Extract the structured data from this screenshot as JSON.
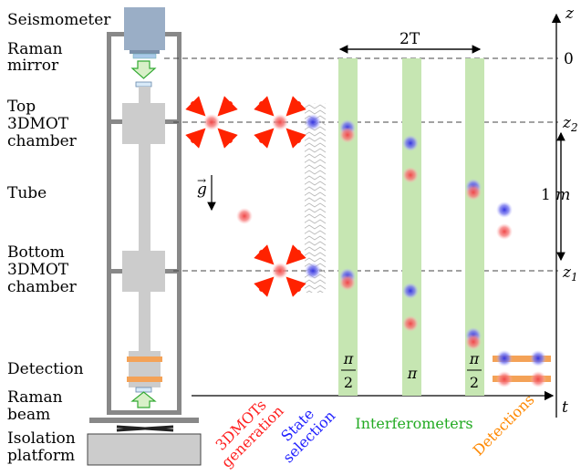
{
  "apparatus_labels": {
    "seismometer": "Seismometer",
    "raman_mirror_1": "Raman",
    "raman_mirror_2": "mirror",
    "top_1": "Top",
    "top_2": "3DMOT",
    "top_3": "chamber",
    "tube": "Tube",
    "bottom_1": "Bottom",
    "bottom_2": "3DMOT",
    "bottom_3": "chamber",
    "detection": "Detection",
    "raman_beam_1": "Raman",
    "raman_beam_2": "beam",
    "isolation_1": "Isolation",
    "isolation_2": "platform"
  },
  "axes": {
    "z_label": "z",
    "t_label": "t",
    "z_ticks": [
      "0",
      "z2",
      "z1"
    ],
    "span_label": "1 m",
    "time_span_label": "2T",
    "gravity_label": "g"
  },
  "pulses": [
    "π/2",
    "π",
    "π/2"
  ],
  "phases": {
    "mot": "3DMOTs generation",
    "state": "State selection",
    "interferometers": "Interferometers",
    "detections": "Detections"
  },
  "colors": {
    "atom_red": "#f06060",
    "atom_blue": "#4040e0",
    "laser_beam_green": "#c6e6b2",
    "mot_arrow_red": "#ff2200",
    "detection_beam_orange": "#f4a257",
    "frame_gray": "#888888",
    "chamber_gray": "#cccccc",
    "seismometer_blue": "#9aaec6",
    "phase_mot": "#ff2020",
    "phase_state": "#2020ff",
    "phase_interferometers": "#22aa22",
    "phase_detections": "#ff8800"
  }
}
